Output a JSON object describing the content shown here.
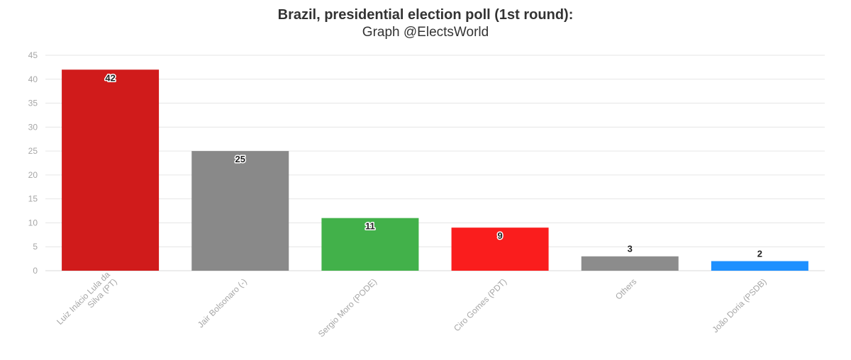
{
  "chart_data": {
    "type": "bar",
    "title": "Brazil, presidential election poll (1st round):",
    "subtitle": "Graph @ElectsWorld",
    "xlabel": "",
    "ylabel": "",
    "ylim": [
      0,
      45
    ],
    "yticks": [
      0,
      5,
      10,
      15,
      20,
      25,
      30,
      35,
      40,
      45
    ],
    "grid": true,
    "categories": [
      "Luiz Inácio Lula da Silva (PT)",
      "Jair Bolsonaro (-)",
      "Sergio Moro (PODE)",
      "Ciro Gomes (PDT)",
      "Others",
      "João Doria (PSDB)"
    ],
    "category_lines": [
      [
        "Luiz Inácio Lula da",
        "Silva (PT)"
      ],
      [
        "Jair Bolsonaro (-)"
      ],
      [
        "Sergio Moro (PODE)"
      ],
      [
        "Ciro Gomes (PDT)"
      ],
      [
        "Others"
      ],
      [
        "João Doria (PSDB)"
      ]
    ],
    "values": [
      42,
      25,
      11,
      9,
      3,
      2
    ],
    "colors": [
      "#d01b1b",
      "#898989",
      "#42b14a",
      "#fa1d1d",
      "#8c8c8c",
      "#1e90ff"
    ]
  }
}
